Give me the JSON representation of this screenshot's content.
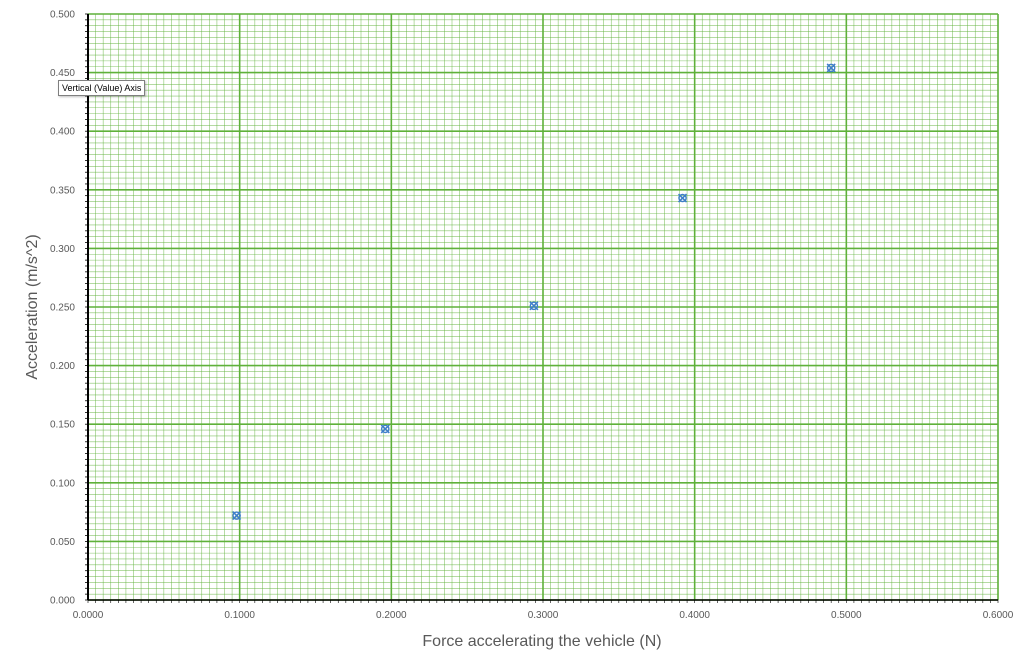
{
  "chart_data": {
    "type": "scatter",
    "xlabel": "Force accelerating the vehicle (N)",
    "ylabel": "Acceleration (m/s^2)",
    "xlim": [
      0,
      0.6
    ],
    "ylim": [
      0,
      0.5
    ],
    "x_tick_labels": [
      "0.0000",
      "0.1000",
      "0.2000",
      "0.3000",
      "0.4000",
      "0.5000",
      "0.6000"
    ],
    "y_tick_labels": [
      "0.000",
      "0.050",
      "0.100",
      "0.150",
      "0.200",
      "0.250",
      "0.300",
      "0.350",
      "0.400",
      "0.450",
      "0.500"
    ],
    "x_major_step": 0.1,
    "x_minor_step": 0.005,
    "y_major_step": 0.05,
    "y_minor_step": 0.005,
    "grid": true,
    "legend": "none",
    "series": [
      {
        "points": [
          {
            "x": 0.098,
            "y": 0.072
          },
          {
            "x": 0.196,
            "y": 0.146
          },
          {
            "x": 0.294,
            "y": 0.251
          },
          {
            "x": 0.392,
            "y": 0.343
          },
          {
            "x": 0.49,
            "y": 0.454
          }
        ]
      }
    ],
    "colors": {
      "grid": "#5fb13a",
      "marker": "#3f7fc9",
      "axis_title": "#595959",
      "tick_label": "#595959"
    }
  },
  "tooltip": {
    "text": "Vertical (Value) Axis"
  }
}
